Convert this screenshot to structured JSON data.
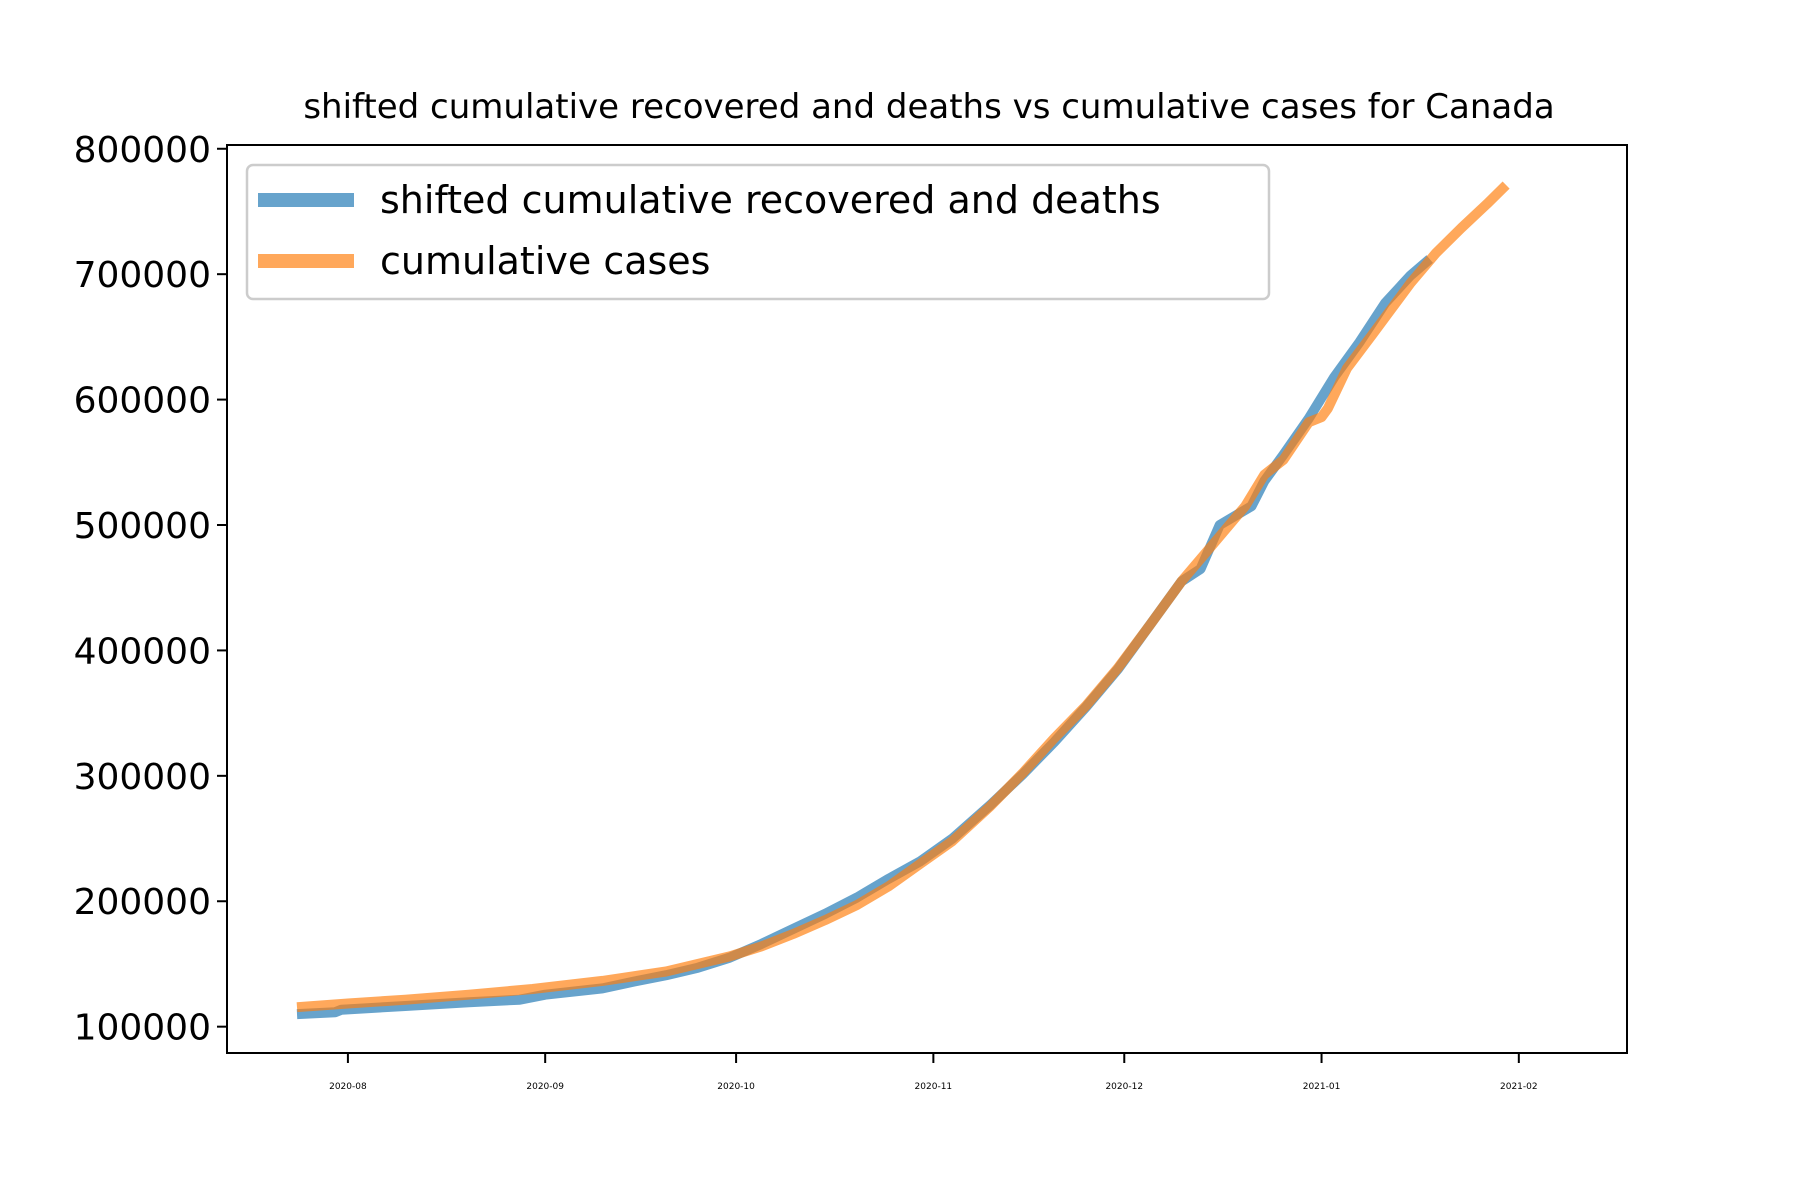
{
  "chart_data": {
    "type": "line",
    "title": "shifted cumulative recovered and deaths vs cumulative cases for Canada",
    "xlabel": "",
    "ylabel": "",
    "x_ticks": [
      "2020-08",
      "2020-09",
      "2020-10",
      "2020-11",
      "2020-12",
      "2021-01",
      "2021-02"
    ],
    "y_ticks": [
      100000,
      200000,
      300000,
      400000,
      500000,
      600000,
      700000,
      800000
    ],
    "xlim": [
      "2020-07-13",
      "2021-02-18"
    ],
    "ylim": [
      79000,
      803000
    ],
    "grid": false,
    "legend_position": "top-left",
    "series": [
      {
        "name": "shifted cumulative recovered and deaths",
        "color": "#1f77b4",
        "points": [
          [
            "2020-07-24",
            110000
          ],
          [
            "2020-07-30",
            111500
          ],
          [
            "2020-07-31",
            113500
          ],
          [
            "2020-08-10",
            116500
          ],
          [
            "2020-08-20",
            119500
          ],
          [
            "2020-08-28",
            121500
          ],
          [
            "2020-09-01",
            125500
          ],
          [
            "2020-09-10",
            130500
          ],
          [
            "2020-09-15",
            136000
          ],
          [
            "2020-09-20",
            141000
          ],
          [
            "2020-09-25",
            147000
          ],
          [
            "2020-09-30",
            155000
          ],
          [
            "2020-10-05",
            166000
          ],
          [
            "2020-10-10",
            178000
          ],
          [
            "2020-10-15",
            190000
          ],
          [
            "2020-10-20",
            203000
          ],
          [
            "2020-10-25",
            218000
          ],
          [
            "2020-10-30",
            232000
          ],
          [
            "2020-11-04",
            250000
          ],
          [
            "2020-11-10",
            277000
          ],
          [
            "2020-11-15",
            301000
          ],
          [
            "2020-11-20",
            327000
          ],
          [
            "2020-11-25",
            355000
          ],
          [
            "2020-11-30",
            385000
          ],
          [
            "2020-12-05",
            420000
          ],
          [
            "2020-12-10",
            455000
          ],
          [
            "2020-12-13",
            465000
          ],
          [
            "2020-12-16",
            500000
          ],
          [
            "2020-12-21",
            515000
          ],
          [
            "2020-12-23",
            535000
          ],
          [
            "2020-12-26",
            556000
          ],
          [
            "2020-12-30",
            585000
          ],
          [
            "2021-01-03",
            618000
          ],
          [
            "2021-01-07",
            646000
          ],
          [
            "2021-01-11",
            677000
          ],
          [
            "2021-01-15",
            699000
          ],
          [
            "2021-01-18",
            712000
          ]
        ]
      },
      {
        "name": "cumulative cases",
        "color": "#ff7f0e",
        "points": [
          [
            "2020-07-24",
            115500
          ],
          [
            "2020-08-01",
            118500
          ],
          [
            "2020-08-10",
            121500
          ],
          [
            "2020-08-20",
            125500
          ],
          [
            "2020-08-30",
            130000
          ],
          [
            "2020-09-10",
            136500
          ],
          [
            "2020-09-20",
            144000
          ],
          [
            "2020-09-30",
            156000
          ],
          [
            "2020-10-05",
            164000
          ],
          [
            "2020-10-10",
            174000
          ],
          [
            "2020-10-15",
            185000
          ],
          [
            "2020-10-20",
            197000
          ],
          [
            "2020-10-25",
            212000
          ],
          [
            "2020-10-30",
            230000
          ],
          [
            "2020-11-04",
            248000
          ],
          [
            "2020-11-10",
            276000
          ],
          [
            "2020-11-15",
            302000
          ],
          [
            "2020-11-20",
            330000
          ],
          [
            "2020-11-25",
            356000
          ],
          [
            "2020-11-30",
            386000
          ],
          [
            "2020-12-05",
            420000
          ],
          [
            "2020-12-10",
            455000
          ],
          [
            "2020-12-15",
            485000
          ],
          [
            "2020-12-20",
            515000
          ],
          [
            "2020-12-23",
            540000
          ],
          [
            "2020-12-26",
            552000
          ],
          [
            "2020-12-30",
            582000
          ],
          [
            "2021-01-01",
            586000
          ],
          [
            "2021-01-02",
            593000
          ],
          [
            "2021-01-05",
            625000
          ],
          [
            "2021-01-09",
            652000
          ],
          [
            "2021-01-15",
            693000
          ],
          [
            "2021-01-19",
            717000
          ],
          [
            "2021-01-23",
            737000
          ],
          [
            "2021-01-27",
            756000
          ],
          [
            "2021-01-30",
            771000
          ]
        ]
      }
    ]
  }
}
